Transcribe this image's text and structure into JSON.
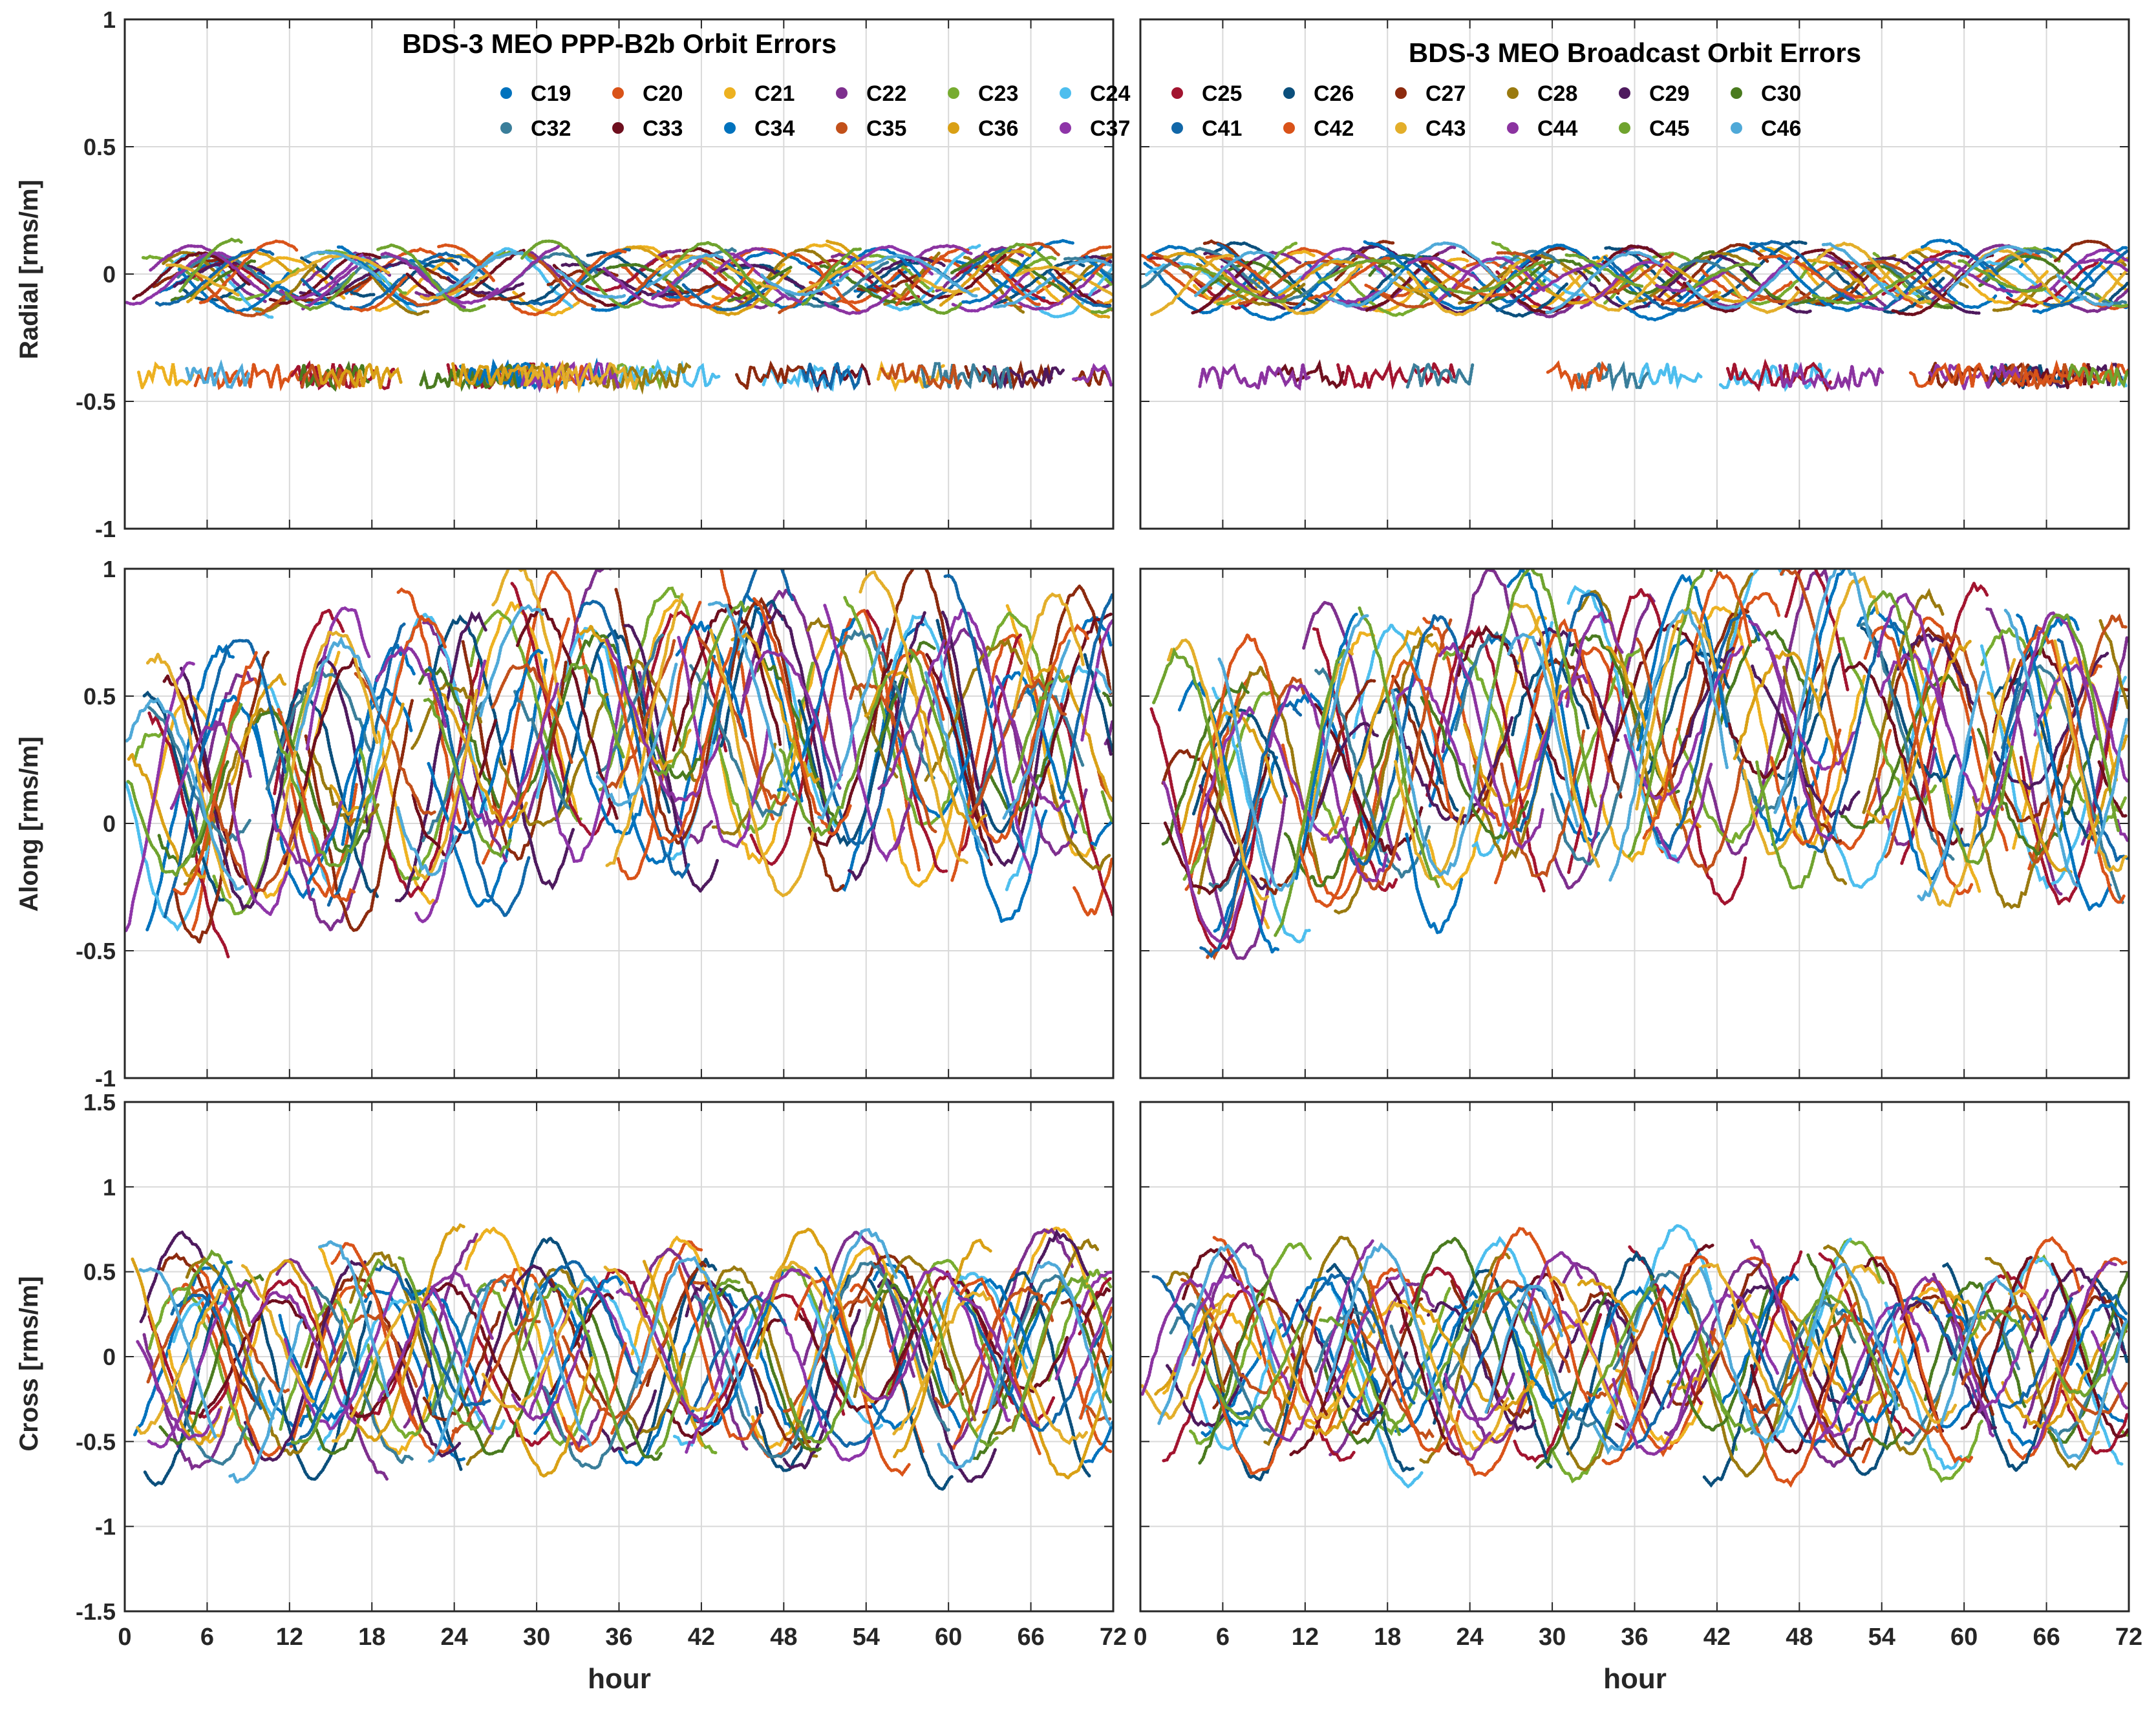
{
  "chart_data": {
    "type": "scatter",
    "figure_description_free": true,
    "x": {
      "label": "hour",
      "lim": [
        0,
        72
      ],
      "ticks": [
        0,
        6,
        12,
        18,
        24,
        30,
        36,
        42,
        48,
        54,
        60,
        66,
        72
      ],
      "tick_labels": [
        "0",
        "6",
        "12",
        "18",
        "24",
        "30",
        "36",
        "42",
        "48",
        "54",
        "60",
        "66",
        "72"
      ]
    },
    "rows": [
      {
        "key": "radial",
        "ylabel": "Radial [rms/m]",
        "ylim": [
          -1,
          1
        ],
        "ticks": [
          -1,
          -0.5,
          0,
          0.5,
          1
        ],
        "tick_labels": [
          "-1",
          "-0.5",
          "0",
          "0.5",
          "1"
        ],
        "amp": 0.1,
        "base": -0.02,
        "outlier": -0.4
      },
      {
        "key": "along",
        "ylabel": "Along [rms/m]",
        "ylim": [
          -1,
          1
        ],
        "ticks": [
          -1,
          -0.5,
          0,
          0.5,
          1
        ],
        "tick_labels": [
          "-1",
          "-0.5",
          "0",
          "0.5",
          "1"
        ],
        "amp": 0.45,
        "base": 0.0,
        "outlier": -0.6
      },
      {
        "key": "cross",
        "ylabel": "Cross [rms/m]",
        "ylim": [
          -1.5,
          1.5
        ],
        "ticks": [
          -1.5,
          -1,
          -0.5,
          0,
          0.5,
          1,
          1.5
        ],
        "tick_labels": [
          "-1.5",
          "-1",
          "-0.5",
          "0",
          "0.5",
          "1",
          "1.5"
        ],
        "amp": 0.5,
        "base": 0.0,
        "outlier": -0.7
      }
    ],
    "columns": [
      {
        "key": "ppp_b2b",
        "title": "BDS-3 MEO PPP-B2b Orbit Errors",
        "seed": 11
      },
      {
        "key": "broadcast",
        "title": "BDS-3 MEO Broadcast Orbit Errors",
        "seed": 29
      }
    ],
    "series": [
      {
        "name": "C19",
        "color": "#0072BD"
      },
      {
        "name": "C20",
        "color": "#D95319"
      },
      {
        "name": "C21",
        "color": "#EDB120"
      },
      {
        "name": "C22",
        "color": "#7E2F8E"
      },
      {
        "name": "C23",
        "color": "#77AC30"
      },
      {
        "name": "C24",
        "color": "#4DBEEE"
      },
      {
        "name": "C25",
        "color": "#A2142F"
      },
      {
        "name": "C26",
        "color": "#0B4F7C"
      },
      {
        "name": "C27",
        "color": "#8C2A0E"
      },
      {
        "name": "C28",
        "color": "#9A7A0F"
      },
      {
        "name": "C29",
        "color": "#4E1A5E"
      },
      {
        "name": "C30",
        "color": "#4A7B1F"
      },
      {
        "name": "C32",
        "color": "#3A7E9A"
      },
      {
        "name": "C33",
        "color": "#6E0F1E"
      },
      {
        "name": "C34",
        "color": "#0072BD"
      },
      {
        "name": "C35",
        "color": "#C2501A"
      },
      {
        "name": "C36",
        "color": "#D9A015"
      },
      {
        "name": "C37",
        "color": "#8E35A8"
      },
      {
        "name": "C41",
        "color": "#1167A8"
      },
      {
        "name": "C42",
        "color": "#D95319"
      },
      {
        "name": "C43",
        "color": "#E3AE2A"
      },
      {
        "name": "C44",
        "color": "#8B33A0"
      },
      {
        "name": "C45",
        "color": "#6FA32E"
      },
      {
        "name": "C46",
        "color": "#4FA9D8"
      }
    ],
    "legend": {
      "placement": "top",
      "rows": 2,
      "items_per_row": 12
    }
  }
}
